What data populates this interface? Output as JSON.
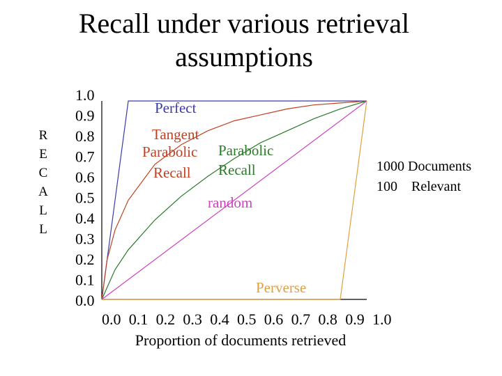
{
  "slide": {
    "title_line1": "Recall under various retrieval",
    "title_line2": "assumptions"
  },
  "chart_data": {
    "type": "line",
    "title": "Recall under various retrieval assumptions",
    "xlabel": "Proportion of documents retrieved",
    "ylabel": "RECALL",
    "ylabel_letters": [
      "R",
      "E",
      "C",
      "A",
      "L",
      "L"
    ],
    "xlim": [
      0,
      1
    ],
    "ylim": [
      0,
      1
    ],
    "xticks": [
      "0.0",
      "0.1",
      "0.2",
      "0.3",
      "0.4",
      "0.5",
      "0.6",
      "0.7",
      "0.8",
      "0.9",
      "1.0"
    ],
    "yticks": [
      "1.0",
      "0.9",
      "0.8",
      "0.7",
      "0.6",
      "0.5",
      "0.4",
      "0.3",
      "0.2",
      "0.1",
      "0.0"
    ],
    "grid": false,
    "series": [
      {
        "name": "Perfect",
        "color": "#3a3aa8",
        "x": [
          0,
          0.1,
          1.0
        ],
        "y": [
          0,
          1,
          1
        ]
      },
      {
        "name": "Tangent Parabolic Recall",
        "color": "#c04020",
        "x": [
          0,
          0.02,
          0.05,
          0.1,
          0.2,
          0.3,
          0.4,
          0.5,
          0.6,
          0.7,
          0.8,
          0.9,
          1.0
        ],
        "y": [
          0,
          0.2,
          0.35,
          0.5,
          0.68,
          0.78,
          0.85,
          0.9,
          0.93,
          0.96,
          0.98,
          0.99,
          1.0
        ]
      },
      {
        "name": "Parabolic Recall",
        "color": "#2a7a2a",
        "x": [
          0,
          0.05,
          0.1,
          0.2,
          0.3,
          0.4,
          0.5,
          0.6,
          0.7,
          0.8,
          0.9,
          1.0
        ],
        "y": [
          0,
          0.15,
          0.25,
          0.4,
          0.52,
          0.62,
          0.71,
          0.79,
          0.85,
          0.91,
          0.96,
          1.0
        ]
      },
      {
        "name": "random",
        "color": "#d040c0",
        "x": [
          0,
          1.0
        ],
        "y": [
          0,
          1.0
        ]
      },
      {
        "name": "Perverse",
        "color": "#e0a040",
        "x": [
          0,
          0.9,
          1.0
        ],
        "y": [
          0,
          0,
          1.0
        ]
      }
    ],
    "annotations": {
      "perfect": "Perfect",
      "tangent_l1": "Tangent",
      "tangent_l2": "Parabolic",
      "tangent_l3": "Recall",
      "parabolic_l1": "Parabolic",
      "parabolic_l2": "Recall",
      "random": "random",
      "perverse": "Perverse"
    },
    "side_note": {
      "line1": "1000 Documents",
      "line2": "100    Relevant"
    }
  }
}
